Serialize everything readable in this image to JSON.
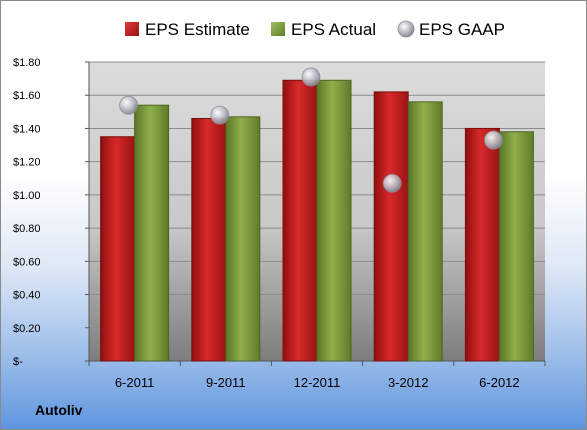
{
  "company_label": "Autoliv",
  "chart_data": {
    "type": "bar",
    "title": "",
    "xlabel": "",
    "ylabel": "",
    "categories": [
      "6-2011",
      "9-2011",
      "12-2011",
      "3-2012",
      "6-2012"
    ],
    "ylim": [
      0,
      1.8
    ],
    "yticks": [
      0,
      0.2,
      0.4,
      0.6,
      0.8,
      1.0,
      1.2,
      1.4,
      1.6,
      1.8
    ],
    "ytick_labels": [
      "$-",
      "$0.20",
      "$0.40",
      "$0.60",
      "$0.80",
      "$1.00",
      "$1.20",
      "$1.40",
      "$1.60",
      "$1.80"
    ],
    "grid": true,
    "legend_position": "top",
    "series": [
      {
        "name": "EPS Estimate",
        "kind": "bar",
        "color": "#cc1f1f",
        "values": [
          1.35,
          1.46,
          1.69,
          1.62,
          1.4
        ]
      },
      {
        "name": "EPS Actual",
        "kind": "bar",
        "color": "#7f9e3f",
        "values": [
          1.54,
          1.47,
          1.69,
          1.56,
          1.38
        ]
      },
      {
        "name": "EPS GAAP",
        "kind": "marker",
        "color": "#b9bcc4",
        "values": [
          1.54,
          1.48,
          1.71,
          1.07,
          1.33
        ]
      }
    ]
  }
}
